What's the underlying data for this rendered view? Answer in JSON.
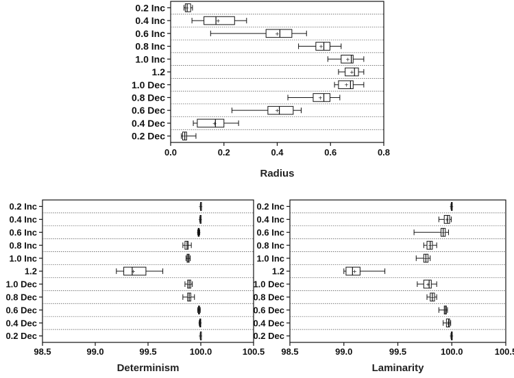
{
  "chart_data": [
    {
      "type": "box",
      "xlabel": "Radius",
      "ylabel": "",
      "xlim": [
        0.0,
        0.8
      ],
      "xticks": [
        "0.0",
        "0.2",
        "0.4",
        "0.6",
        "0.8"
      ],
      "grid": "horizontal dotted separators",
      "categories": [
        "0.2 Inc",
        "0.4 Inc",
        "0.6 Inc",
        "0.8 Inc",
        "1.0 Inc",
        "1.2",
        "1.0 Dec",
        "0.8 Dec",
        "0.6 Dec",
        "0.4 Dec",
        "0.2 Dec"
      ],
      "boxes": [
        {
          "whisker_low": 0.05,
          "q1": 0.055,
          "median": 0.062,
          "mean": 0.061,
          "q3": 0.075,
          "whisker_high": 0.082
        },
        {
          "whisker_low": 0.08,
          "q1": 0.125,
          "median": 0.17,
          "mean": 0.178,
          "q3": 0.24,
          "whisker_high": 0.285
        },
        {
          "whisker_low": 0.15,
          "q1": 0.358,
          "median": 0.41,
          "mean": 0.4,
          "q3": 0.455,
          "whisker_high": 0.51
        },
        {
          "whisker_low": 0.48,
          "q1": 0.545,
          "median": 0.575,
          "mean": 0.565,
          "q3": 0.598,
          "whisker_high": 0.64
        },
        {
          "whisker_low": 0.59,
          "q1": 0.64,
          "median": 0.678,
          "mean": 0.665,
          "q3": 0.685,
          "whisker_high": 0.725
        },
        {
          "whisker_low": 0.63,
          "q1": 0.655,
          "median": 0.69,
          "mean": 0.68,
          "q3": 0.705,
          "whisker_high": 0.725
        },
        {
          "whisker_low": 0.615,
          "q1": 0.63,
          "median": 0.675,
          "mean": 0.66,
          "q3": 0.685,
          "whisker_high": 0.725
        },
        {
          "whisker_low": 0.44,
          "q1": 0.535,
          "median": 0.575,
          "mean": 0.562,
          "q3": 0.598,
          "whisker_high": 0.635
        },
        {
          "whisker_low": 0.23,
          "q1": 0.365,
          "median": 0.408,
          "mean": 0.4,
          "q3": 0.46,
          "whisker_high": 0.49
        },
        {
          "whisker_low": 0.085,
          "q1": 0.1,
          "median": 0.168,
          "mean": 0.165,
          "q3": 0.2,
          "whisker_high": 0.255
        },
        {
          "whisker_low": 0.04,
          "q1": 0.045,
          "median": 0.053,
          "mean": 0.053,
          "q3": 0.06,
          "whisker_high": 0.095
        }
      ]
    },
    {
      "type": "box",
      "xlabel": "Determinism",
      "ylabel": "",
      "xlim": [
        98.5,
        100.5
      ],
      "xticks": [
        "98.5",
        "99.0",
        "99.5",
        "100.0",
        "100.5"
      ],
      "grid": "horizontal dotted separators",
      "categories": [
        "0.2 Inc",
        "0.4 Inc",
        "0.6 Inc",
        "0.8 Inc",
        "1.0 Inc",
        "1.2",
        "1.0 Dec",
        "0.8 Dec",
        "0.6 Dec",
        "0.4 Dec",
        "0.2 Dec"
      ],
      "boxes": [
        {
          "whisker_low": 99.995,
          "q1": 99.997,
          "median": 99.998,
          "mean": 99.998,
          "q3": 99.999,
          "whisker_high": 100.0
        },
        {
          "whisker_low": 99.99,
          "q1": 99.993,
          "median": 99.995,
          "mean": 99.995,
          "q3": 99.997,
          "whisker_high": 99.999
        },
        {
          "whisker_low": 99.97,
          "q1": 99.975,
          "median": 99.98,
          "mean": 99.98,
          "q3": 99.985,
          "whisker_high": 99.99
        },
        {
          "whisker_low": 99.83,
          "q1": 99.85,
          "median": 99.87,
          "mean": 99.87,
          "q3": 99.88,
          "whisker_high": 99.91
        },
        {
          "whisker_low": 99.86,
          "q1": 99.87,
          "median": 99.88,
          "mean": 99.88,
          "q3": 99.89,
          "whisker_high": 99.9
        },
        {
          "whisker_low": 99.2,
          "q1": 99.27,
          "median": 99.35,
          "mean": 99.36,
          "q3": 99.48,
          "whisker_high": 99.64
        },
        {
          "whisker_low": 99.85,
          "q1": 99.875,
          "median": 99.89,
          "mean": 99.89,
          "q3": 99.905,
          "whisker_high": 99.92
        },
        {
          "whisker_low": 99.83,
          "q1": 99.875,
          "median": 99.89,
          "mean": 99.89,
          "q3": 99.905,
          "whisker_high": 99.94
        },
        {
          "whisker_low": 99.97,
          "q1": 99.978,
          "median": 99.983,
          "mean": 99.983,
          "q3": 99.988,
          "whisker_high": 99.995
        },
        {
          "whisker_low": 99.985,
          "q1": 99.99,
          "median": 99.993,
          "mean": 99.993,
          "q3": 99.996,
          "whisker_high": 99.999
        },
        {
          "whisker_low": 99.994,
          "q1": 99.996,
          "median": 99.997,
          "mean": 99.997,
          "q3": 99.998,
          "whisker_high": 99.999
        }
      ]
    },
    {
      "type": "box",
      "xlabel": "Laminarity",
      "ylabel": "",
      "xlim": [
        98.5,
        100.5
      ],
      "xticks": [
        "98.5",
        "99.0",
        "99.5",
        "100.0",
        "100.5"
      ],
      "grid": "horizontal dotted separators",
      "categories": [
        "0.2 Inc",
        "0.4 Inc",
        "0.6 Inc",
        "0.8 Inc",
        "1.0 Inc",
        "1.2",
        "1.0 Dec",
        "0.8 Dec",
        "0.6 Dec",
        "0.4 Dec",
        "0.2 Dec"
      ],
      "boxes": [
        {
          "whisker_low": 99.992,
          "q1": 99.995,
          "median": 99.997,
          "mean": 99.997,
          "q3": 99.999,
          "whisker_high": 100.0
        },
        {
          "whisker_low": 99.88,
          "q1": 99.93,
          "median": 99.96,
          "mean": 99.955,
          "q3": 99.98,
          "whisker_high": 99.995
        },
        {
          "whisker_low": 99.65,
          "q1": 99.9,
          "median": 99.92,
          "mean": 99.92,
          "q3": 99.94,
          "whisker_high": 99.97
        },
        {
          "whisker_low": 99.74,
          "q1": 99.77,
          "median": 99.8,
          "mean": 99.8,
          "q3": 99.82,
          "whisker_high": 99.86
        },
        {
          "whisker_low": 99.67,
          "q1": 99.74,
          "median": 99.76,
          "mean": 99.76,
          "q3": 99.78,
          "whisker_high": 99.8
        },
        {
          "whisker_low": 99.0,
          "q1": 99.02,
          "median": 99.08,
          "mean": 99.1,
          "q3": 99.15,
          "whisker_high": 99.38
        },
        {
          "whisker_low": 99.68,
          "q1": 99.74,
          "median": 99.79,
          "mean": 99.78,
          "q3": 99.81,
          "whisker_high": 99.86
        },
        {
          "whisker_low": 99.77,
          "q1": 99.8,
          "median": 99.82,
          "mean": 99.82,
          "q3": 99.84,
          "whisker_high": 99.86
        },
        {
          "whisker_low": 99.88,
          "q1": 99.93,
          "median": 99.94,
          "mean": 99.94,
          "q3": 99.95,
          "whisker_high": 99.96
        },
        {
          "whisker_low": 99.92,
          "q1": 99.95,
          "median": 99.97,
          "mean": 99.965,
          "q3": 99.98,
          "whisker_high": 99.99
        },
        {
          "whisker_low": 99.992,
          "q1": 99.995,
          "median": 99.997,
          "mean": 99.997,
          "q3": 99.999,
          "whisker_high": 100.0
        }
      ]
    }
  ]
}
